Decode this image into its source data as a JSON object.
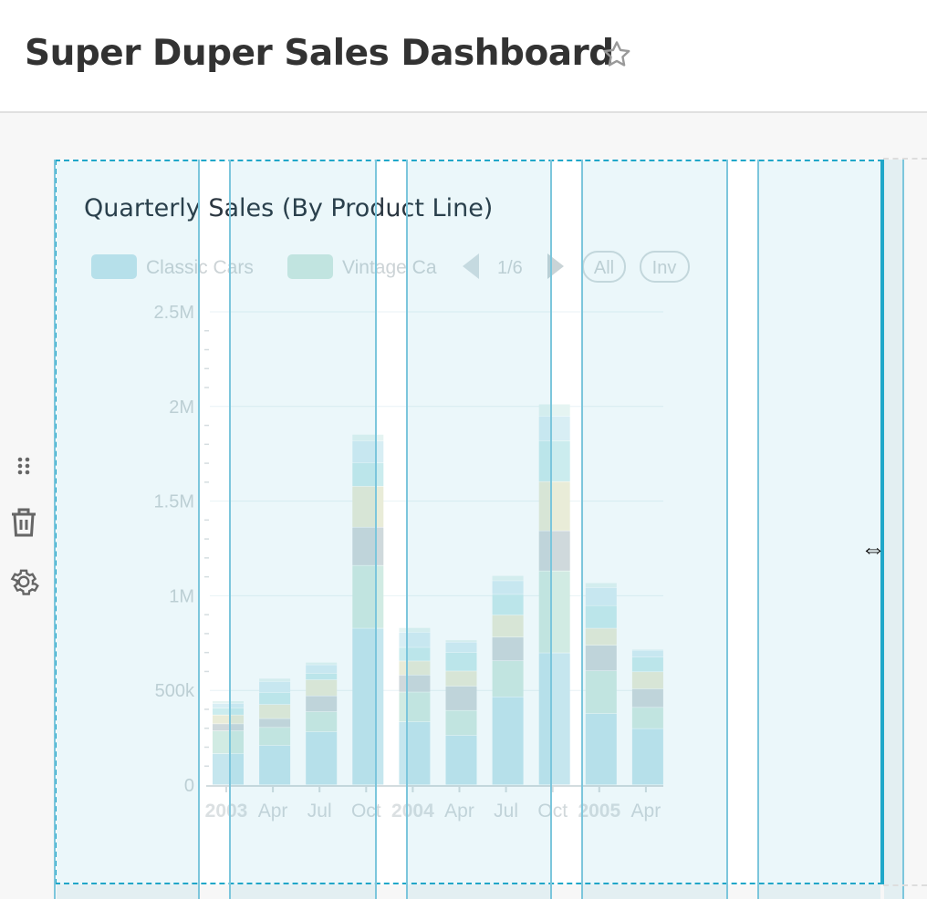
{
  "header": {
    "title": "Super Duper Sales Dashboard",
    "favorite_icon": "star-icon"
  },
  "toolbar": {
    "icons": [
      "drag-handle-icon",
      "trash-icon",
      "gear-icon"
    ]
  },
  "chart": {
    "title": "Quarterly Sales (By Product Line)",
    "legend": {
      "items": [
        "Classic Cars",
        "Vintage Ca"
      ],
      "page": "1/6",
      "all_label": "All",
      "inv_label": "Inv"
    }
  },
  "chart_data": {
    "type": "bar",
    "stacked": true,
    "categories": [
      "2003",
      "Apr",
      "Jul",
      "Oct",
      "2004",
      "Apr",
      "Jul",
      "Oct",
      "2005",
      "Apr"
    ],
    "bold_categories": [
      "2003",
      "2004",
      "2005"
    ],
    "yticks": [
      "0",
      "500k",
      "1M",
      "1.5M",
      "2M",
      "2.5M"
    ],
    "ylim": [
      0,
      2500000
    ],
    "grid": true,
    "legend_placement": "top",
    "series": [
      {
        "name": "Classic Cars",
        "color": "#c5e6ee",
        "values": [
          165000,
          208000,
          280000,
          827000,
          333000,
          261000,
          465000,
          697000,
          376000,
          297000
        ]
      },
      {
        "name": "Vintage Cars",
        "color": "#d1ebe3",
        "values": [
          120000,
          95000,
          106000,
          332000,
          157000,
          132000,
          190000,
          433000,
          226000,
          112000
        ]
      },
      {
        "color": "#cfd9dc",
        "values": [
          37000,
          47000,
          84000,
          202000,
          90000,
          128000,
          125000,
          212000,
          135000,
          98000
        ]
      },
      {
        "color": "#e9ecd8",
        "values": [
          47000,
          74000,
          85000,
          216000,
          74000,
          80000,
          117000,
          260000,
          90000,
          90000
        ]
      },
      {
        "color": "#cbecee",
        "values": [
          37000,
          64000,
          34000,
          125000,
          72000,
          98000,
          109000,
          216000,
          120000,
          78000
        ]
      },
      {
        "color": "#d8eef4",
        "values": [
          24000,
          58000,
          45000,
          115000,
          80000,
          55000,
          72000,
          130000,
          95000,
          36000
        ]
      },
      {
        "color": "#e5f4f2",
        "values": [
          13000,
          16000,
          13000,
          34000,
          24000,
          11000,
          27000,
          63000,
          25000,
          5000
        ]
      }
    ]
  }
}
